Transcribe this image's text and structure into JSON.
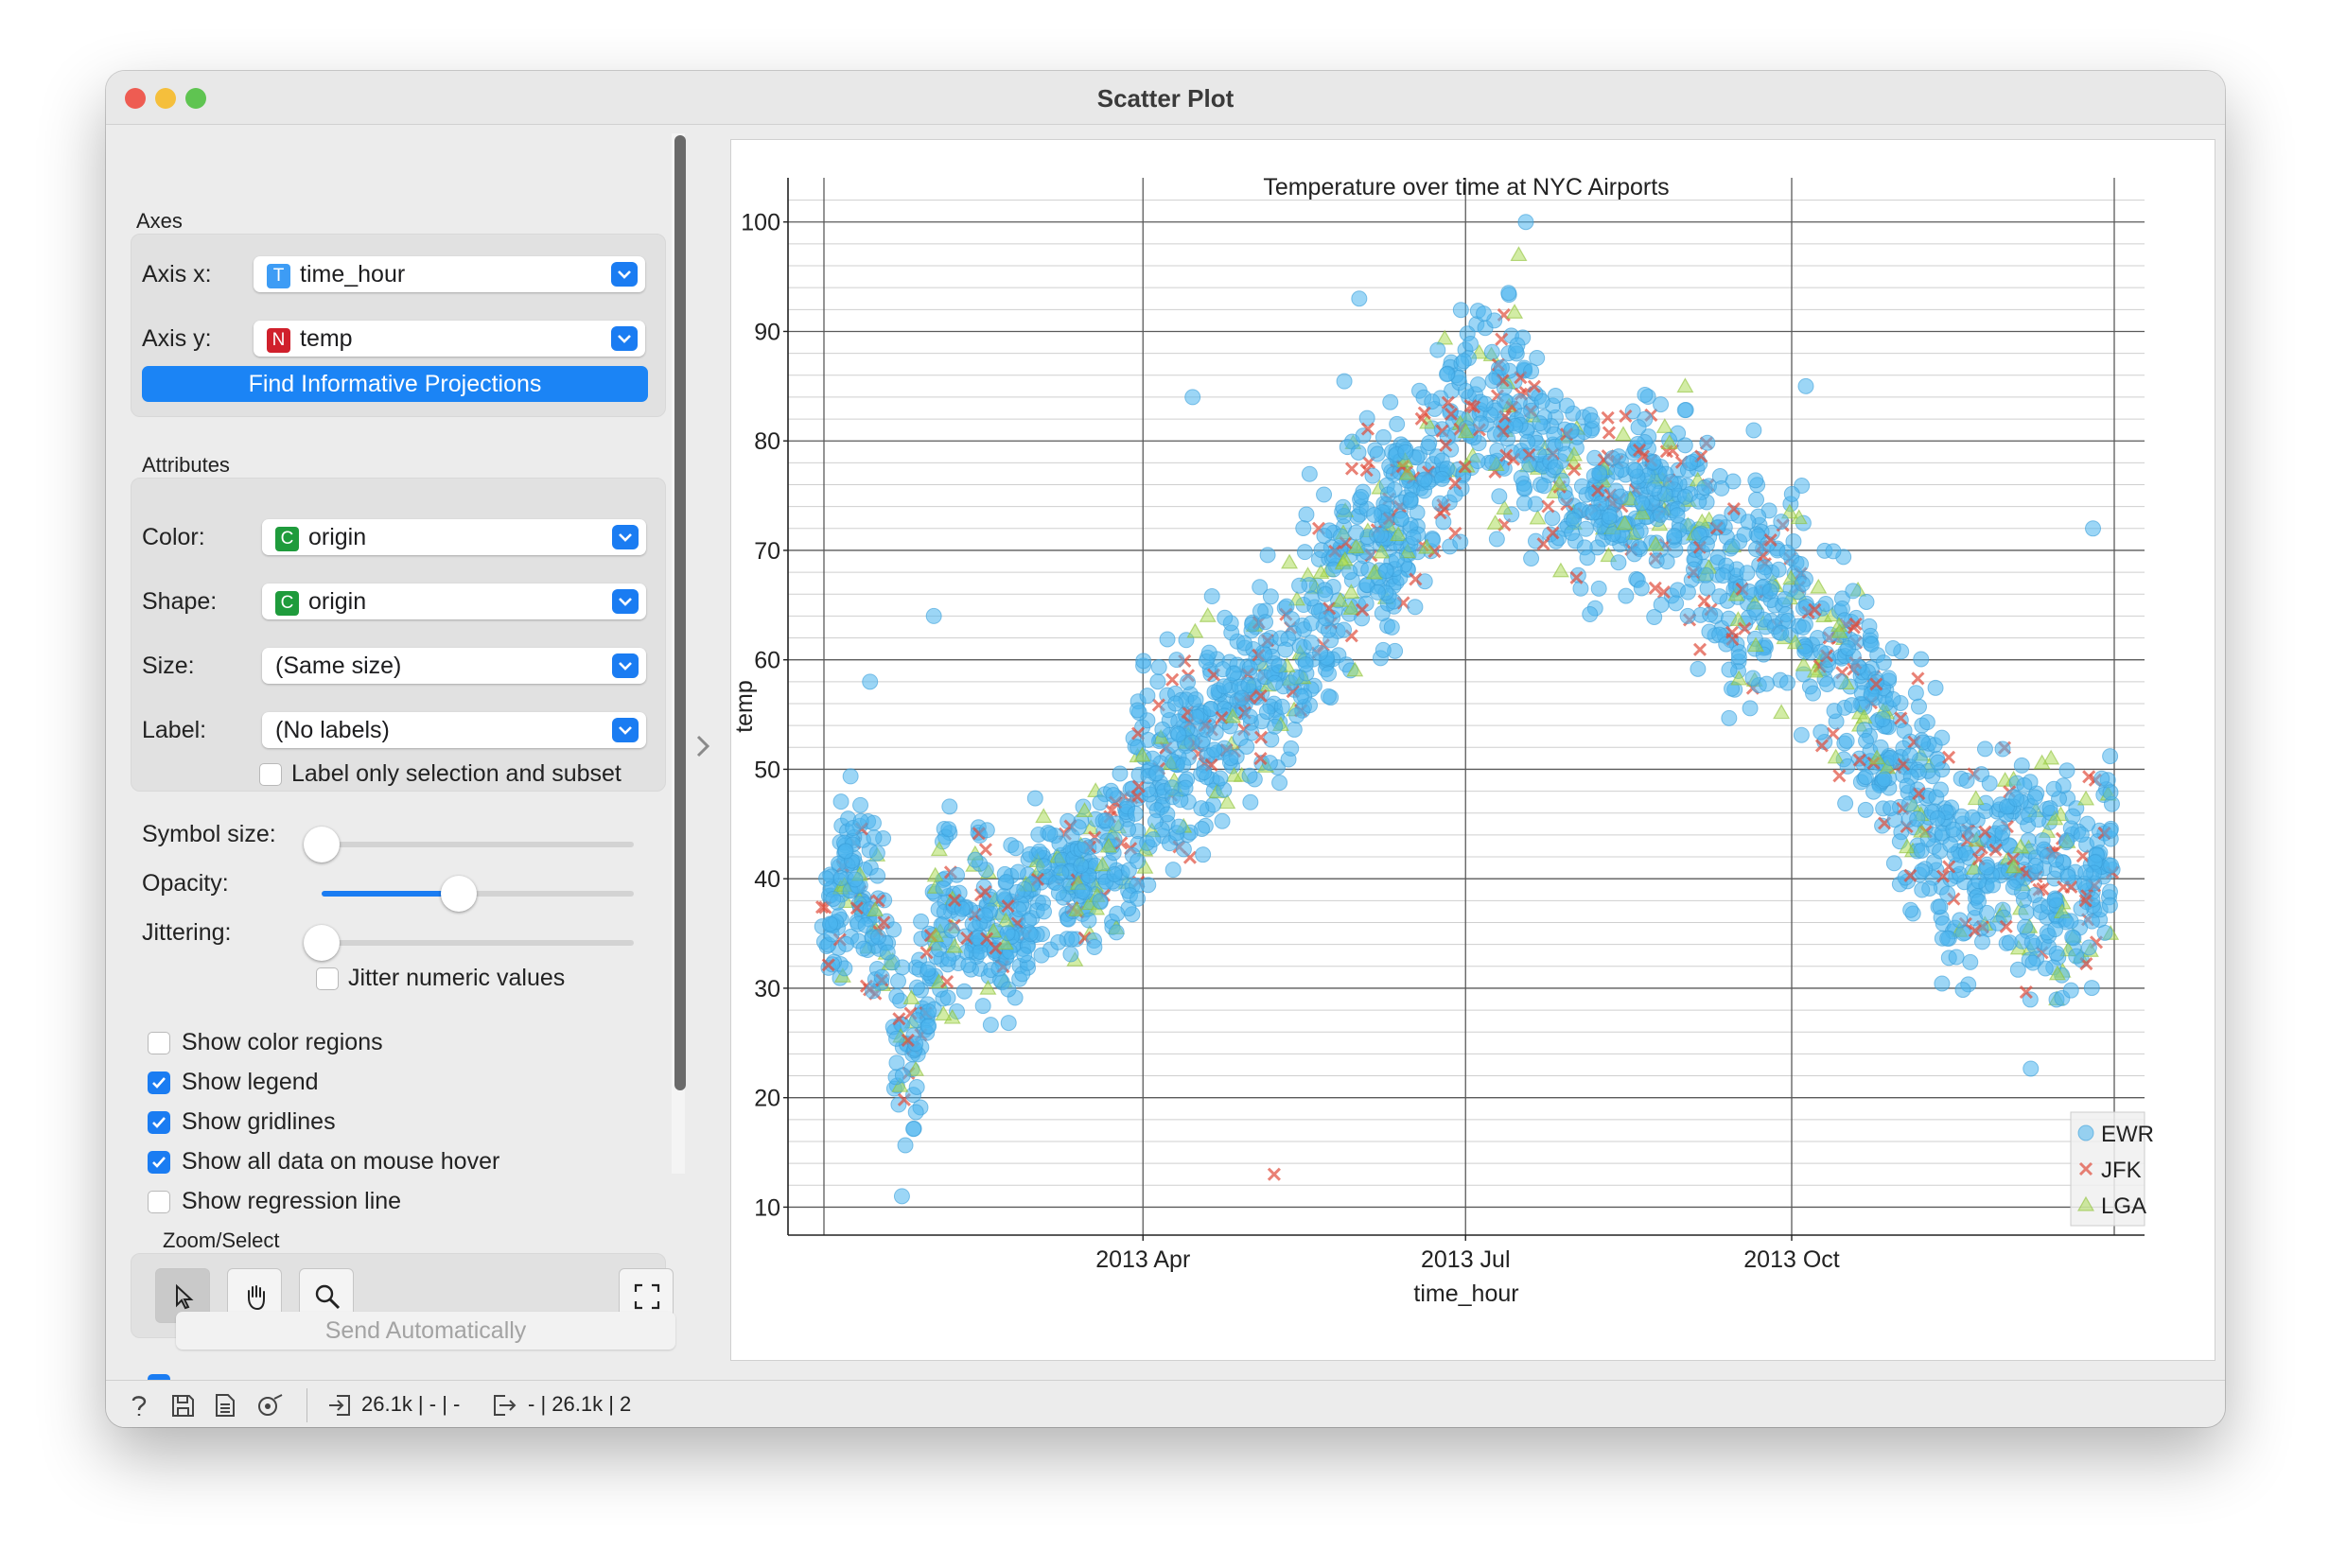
{
  "window": {
    "title": "Scatter Plot"
  },
  "controls": {
    "axes_title": "Axes",
    "axis_x_label": "Axis x:",
    "axis_x_value": "time_hour",
    "axis_x_badge": "T",
    "axis_y_label": "Axis y:",
    "axis_y_value": "temp",
    "axis_y_badge": "N",
    "find_button": "Find Informative Projections",
    "attributes_title": "Attributes",
    "color_label": "Color:",
    "color_value": "origin",
    "color_badge": "C",
    "shape_label": "Shape:",
    "shape_value": "origin",
    "shape_badge": "C",
    "size_label": "Size:",
    "size_value": "(Same size)",
    "label_label": "Label:",
    "label_value": "(No labels)",
    "label_only_selection": "Label only selection and subset",
    "symbol_size_label": "Symbol size:",
    "opacity_label": "Opacity:",
    "jittering_label": "Jittering:",
    "jitter_numeric": "Jitter numeric values",
    "symbol_size_level": 0.0,
    "opacity_level": 0.44,
    "jitter_level": 0.0,
    "show_color_regions": "Show color regions",
    "show_legend": "Show legend",
    "show_gridlines": "Show gridlines",
    "show_all_data": "Show all data on mouse hover",
    "show_regression": "Show regression line",
    "checks": {
      "color_regions": false,
      "legend": true,
      "gridlines": true,
      "all_data": true,
      "regression": false,
      "label_only": false,
      "jitter_numeric": false,
      "send_auto": true
    },
    "zoom_select_title": "Zoom/Select",
    "send_button": "Send Automatically"
  },
  "status": {
    "input_summary": "26.1k | - | -",
    "output_summary": "- | 26.1k | 2"
  },
  "colors": {
    "EWR": "#4ab4ef",
    "JFK": "#e04b3a",
    "LGA": "#a6d94c",
    "accent": "#1a7cf2"
  },
  "chart_data": {
    "type": "scatter",
    "title": "Temperature over time at NYC Airports",
    "xlabel": "time_hour",
    "ylabel": "temp",
    "x_ticks": [
      "2013 Apr",
      "2013 Jul",
      "2013 Oct"
    ],
    "x_range": [
      "2013-01-01",
      "2013-12-31"
    ],
    "y_ticks": [
      10,
      20,
      30,
      40,
      50,
      60,
      70,
      80,
      90,
      100
    ],
    "ylim": [
      9,
      103
    ],
    "grid": true,
    "legend_position": "bottom-right",
    "series": [
      {
        "name": "EWR",
        "marker": "circle"
      },
      {
        "name": "JFK",
        "marker": "x"
      },
      {
        "name": "LGA",
        "marker": "triangle"
      }
    ],
    "band_points": [
      {
        "x": "2013-01-01",
        "low": 28,
        "high": 42
      },
      {
        "x": "2013-01-10",
        "low": 32,
        "high": 50
      },
      {
        "x": "2013-01-20",
        "low": 20,
        "high": 46
      },
      {
        "x": "2013-01-25",
        "low": 12,
        "high": 32
      },
      {
        "x": "2013-02-05",
        "low": 26,
        "high": 50
      },
      {
        "x": "2013-02-20",
        "low": 24,
        "high": 46
      },
      {
        "x": "2013-03-05",
        "low": 30,
        "high": 48
      },
      {
        "x": "2013-03-20",
        "low": 32,
        "high": 48
      },
      {
        "x": "2013-04-01",
        "low": 34,
        "high": 62
      },
      {
        "x": "2013-04-15",
        "low": 40,
        "high": 66
      },
      {
        "x": "2013-05-01",
        "low": 44,
        "high": 70
      },
      {
        "x": "2013-05-15",
        "low": 48,
        "high": 76
      },
      {
        "x": "2013-06-01",
        "low": 55,
        "high": 88
      },
      {
        "x": "2013-06-15",
        "low": 60,
        "high": 88
      },
      {
        "x": "2013-07-01",
        "low": 70,
        "high": 94
      },
      {
        "x": "2013-07-15",
        "low": 70,
        "high": 96
      },
      {
        "x": "2013-08-01",
        "low": 64,
        "high": 86
      },
      {
        "x": "2013-08-15",
        "low": 64,
        "high": 86
      },
      {
        "x": "2013-09-01",
        "low": 60,
        "high": 88
      },
      {
        "x": "2013-09-15",
        "low": 52,
        "high": 80
      },
      {
        "x": "2013-10-01",
        "low": 52,
        "high": 82
      },
      {
        "x": "2013-10-15",
        "low": 46,
        "high": 74
      },
      {
        "x": "2013-11-01",
        "low": 36,
        "high": 64
      },
      {
        "x": "2013-11-15",
        "low": 28,
        "high": 56
      },
      {
        "x": "2013-12-01",
        "low": 26,
        "high": 56
      },
      {
        "x": "2013-12-15",
        "low": 20,
        "high": 58
      },
      {
        "x": "2013-12-31",
        "low": 30,
        "high": 54
      }
    ],
    "extreme_points": [
      {
        "x": "2013-01-23",
        "y": 11,
        "series": "EWR"
      },
      {
        "x": "2013-05-08",
        "y": 13,
        "series": "JFK"
      },
      {
        "x": "2013-07-18",
        "y": 100,
        "series": "EWR"
      },
      {
        "x": "2013-07-16",
        "y": 97,
        "series": "LGA"
      },
      {
        "x": "2013-06-01",
        "y": 93,
        "series": "EWR"
      },
      {
        "x": "2013-04-15",
        "y": 84,
        "series": "EWR"
      },
      {
        "x": "2013-10-05",
        "y": 85,
        "series": "EWR"
      },
      {
        "x": "2013-12-25",
        "y": 72,
        "series": "EWR"
      },
      {
        "x": "2013-01-14",
        "y": 58,
        "series": "EWR"
      },
      {
        "x": "2013-02-01",
        "y": 64,
        "series": "EWR"
      }
    ]
  }
}
